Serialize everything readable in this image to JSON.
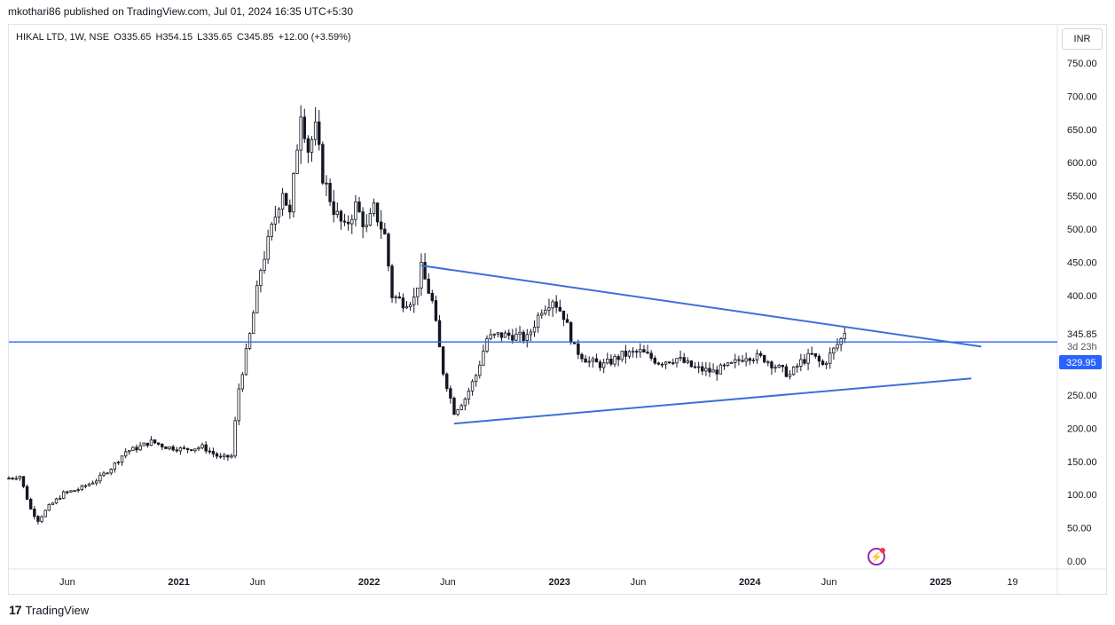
{
  "header": {
    "published_by": "mkothari86 published on TradingView.com, Jul 01, 2024 16:35 UTC+5:30"
  },
  "legend": {
    "symbol": "HIKAL LTD, 1W, NSE",
    "open": "O335.65",
    "high": "H354.15",
    "low": "L335.65",
    "close": "C345.85",
    "change": "+12.00 (+3.59%)"
  },
  "currency": "INR",
  "footer": {
    "brand": "TradingView",
    "logo": "17"
  },
  "colors": {
    "trendline": "#3d6fd9",
    "hline": "#2962ff",
    "candle": "#131722",
    "axis_text": "#131722",
    "price_label_bg": "#2962ff",
    "lightning": "#9c27b0"
  },
  "chart_data": {
    "type": "candlestick",
    "symbol": "HIKAL LTD",
    "interval": "1W",
    "exchange": "NSE",
    "y_axis": {
      "ticks": [
        0,
        50,
        100,
        150,
        200,
        250,
        300,
        350,
        400,
        450,
        500,
        550,
        600,
        650,
        700,
        750
      ],
      "tick_labels": [
        "0.00",
        "50.00",
        "100.00",
        "150.00",
        "200.00",
        "250.00",
        "300.00",
        "",
        "400.00",
        "450.00",
        "500.00",
        "550.00",
        "600.00",
        "650.00",
        "700.00",
        "750.00"
      ],
      "range": [
        0,
        770
      ]
    },
    "x_axis": {
      "range": [
        "2020-02-10",
        "2025-08-01"
      ],
      "ticks": [
        {
          "date": "2020-06-01",
          "label": "Jun"
        },
        {
          "date": "2021-01-01",
          "label": "2021"
        },
        {
          "date": "2021-06-01",
          "label": "Jun"
        },
        {
          "date": "2022-01-01",
          "label": "2022"
        },
        {
          "date": "2022-06-01",
          "label": "Jun"
        },
        {
          "date": "2023-01-01",
          "label": "2023"
        },
        {
          "date": "2023-06-01",
          "label": "Jun"
        },
        {
          "date": "2024-01-01",
          "label": "2024"
        },
        {
          "date": "2024-06-01",
          "label": "Jun"
        },
        {
          "date": "2025-01-01",
          "label": "2025"
        },
        {
          "date": "2025-05-19",
          "label": "19"
        }
      ]
    },
    "price_labels": {
      "last_price": "345.85",
      "countdown": "3d 23h",
      "horizontal_level": "329.95"
    },
    "horizontal_line": {
      "price": 329.95
    },
    "trendlines": [
      {
        "from": {
          "date": "2022-04-11",
          "price": 445
        },
        "to": {
          "date": "2025-03-20",
          "price": 323
        }
      },
      {
        "from": {
          "date": "2022-06-13",
          "price": 207
        },
        "to": {
          "date": "2025-03-01",
          "price": 275
        }
      }
    ],
    "price_path": [
      [
        "2020-02-10",
        125
      ],
      [
        "2020-03-02",
        128
      ],
      [
        "2020-03-23",
        78
      ],
      [
        "2020-04-06",
        62
      ],
      [
        "2020-04-27",
        82
      ],
      [
        "2020-05-25",
        102
      ],
      [
        "2020-06-22",
        108
      ],
      [
        "2020-07-27",
        122
      ],
      [
        "2020-08-24",
        140
      ],
      [
        "2020-09-21",
        165
      ],
      [
        "2020-10-12",
        170
      ],
      [
        "2020-11-09",
        180
      ],
      [
        "2020-12-07",
        172
      ],
      [
        "2021-01-11",
        168
      ],
      [
        "2021-02-15",
        172
      ],
      [
        "2021-03-22",
        155
      ],
      [
        "2021-04-12",
        158
      ],
      [
        "2021-04-26",
        260
      ],
      [
        "2021-05-17",
        340
      ],
      [
        "2021-06-07",
        440
      ],
      [
        "2021-06-28",
        500
      ],
      [
        "2021-07-19",
        560
      ],
      [
        "2021-08-02",
        520
      ],
      [
        "2021-08-23",
        680
      ],
      [
        "2021-09-06",
        620
      ],
      [
        "2021-09-20",
        650
      ],
      [
        "2021-10-04",
        580
      ],
      [
        "2021-10-25",
        530
      ],
      [
        "2021-11-15",
        500
      ],
      [
        "2021-12-06",
        535
      ],
      [
        "2021-12-27",
        500
      ],
      [
        "2022-01-10",
        530
      ],
      [
        "2022-01-31",
        490
      ],
      [
        "2022-02-14",
        400
      ],
      [
        "2022-03-07",
        390
      ],
      [
        "2022-03-28",
        395
      ],
      [
        "2022-04-11",
        440
      ],
      [
        "2022-05-02",
        390
      ],
      [
        "2022-05-23",
        285
      ],
      [
        "2022-06-13",
        225
      ],
      [
        "2022-07-04",
        245
      ],
      [
        "2022-07-25",
        280
      ],
      [
        "2022-08-15",
        335
      ],
      [
        "2022-09-05",
        340
      ],
      [
        "2022-10-03",
        340
      ],
      [
        "2022-10-31",
        335
      ],
      [
        "2022-11-28",
        380
      ],
      [
        "2022-12-19",
        395
      ],
      [
        "2023-01-09",
        370
      ],
      [
        "2023-01-30",
        320
      ],
      [
        "2023-02-27",
        300
      ],
      [
        "2023-03-27",
        295
      ],
      [
        "2023-05-01",
        310
      ],
      [
        "2023-06-05",
        315
      ],
      [
        "2023-07-10",
        300
      ],
      [
        "2023-08-14",
        305
      ],
      [
        "2023-09-18",
        290
      ],
      [
        "2023-10-23",
        285
      ],
      [
        "2023-11-27",
        295
      ],
      [
        "2023-12-25",
        310
      ],
      [
        "2024-01-29",
        305
      ],
      [
        "2024-02-26",
        290
      ],
      [
        "2024-03-18",
        280
      ],
      [
        "2024-04-08",
        300
      ],
      [
        "2024-04-29",
        310
      ],
      [
        "2024-05-20",
        295
      ],
      [
        "2024-06-10",
        318
      ],
      [
        "2024-06-24",
        334
      ],
      [
        "2024-07-01",
        346
      ]
    ],
    "grid": false,
    "legend_position": "top-left"
  }
}
